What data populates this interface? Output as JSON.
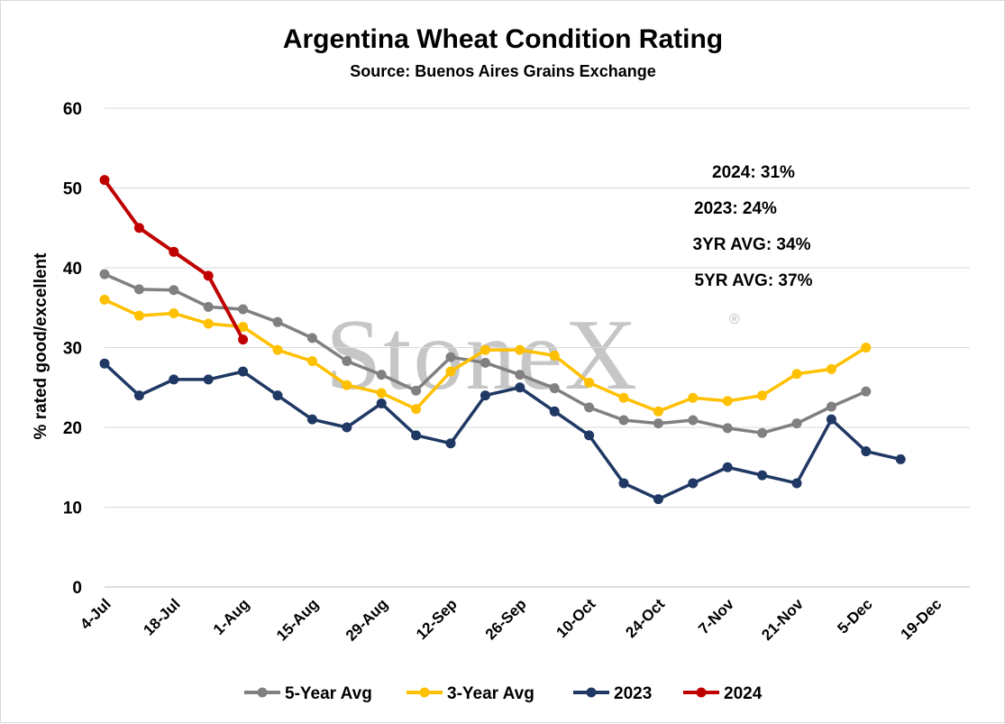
{
  "chart_data": {
    "type": "line",
    "title": "Argentina Wheat Condition Rating",
    "subtitle": "Source: Buenos Aires Grains Exchange",
    "ylabel": "% rated good/excellent",
    "xlabel": "",
    "ylim": [
      0,
      60
    ],
    "yticks": [
      0,
      10,
      20,
      30,
      40,
      50,
      60
    ],
    "grid": true,
    "legend_position": "bottom",
    "x_categories": [
      "4-Jul",
      "11-Jul",
      "18-Jul",
      "25-Jul",
      "1-Aug",
      "8-Aug",
      "15-Aug",
      "22-Aug",
      "29-Aug",
      "5-Sep",
      "12-Sep",
      "19-Sep",
      "26-Sep",
      "3-Oct",
      "10-Oct",
      "17-Oct",
      "24-Oct",
      "31-Oct",
      "7-Nov",
      "14-Nov",
      "21-Nov",
      "28-Nov",
      "5-Dec",
      "12-Dec",
      "19-Dec"
    ],
    "x_tick_labels": [
      "4-Jul",
      "18-Jul",
      "1-Aug",
      "15-Aug",
      "29-Aug",
      "12-Sep",
      "26-Sep",
      "10-Oct",
      "24-Oct",
      "7-Nov",
      "21-Nov",
      "5-Dec",
      "19-Dec"
    ],
    "series": [
      {
        "name": "5-Year Avg",
        "color": "#808080",
        "values": [
          39.2,
          37.3,
          37.2,
          35.1,
          34.8,
          33.2,
          31.2,
          28.3,
          26.6,
          24.6,
          28.8,
          28.1,
          26.6,
          24.9,
          22.5,
          20.9,
          20.5,
          20.9,
          19.9,
          19.3,
          20.5,
          22.6,
          24.5
        ]
      },
      {
        "name": "3-Year Avg",
        "color": "#ffc000",
        "values": [
          36.0,
          34.0,
          34.3,
          33.0,
          32.6,
          29.7,
          28.3,
          25.3,
          24.3,
          22.3,
          27.0,
          29.7,
          29.7,
          29.0,
          25.6,
          23.7,
          22.0,
          23.7,
          23.3,
          24.0,
          26.7,
          27.3,
          30.0
        ]
      },
      {
        "name": "2023",
        "color": "#1f3864",
        "values": [
          28,
          24,
          26,
          26,
          27,
          24,
          21,
          20,
          23,
          19,
          18,
          24,
          25,
          22,
          19,
          13,
          11,
          13,
          15,
          14,
          13,
          21,
          17,
          16
        ]
      },
      {
        "name": "2024",
        "color": "#c00000",
        "values": [
          51,
          45,
          42,
          39,
          31
        ]
      }
    ],
    "annotations": [
      "2024: 31%",
      "2023: 24%",
      "3YR AVG: 34%",
      "5YR AVG: 37%"
    ],
    "watermark": "StoneX",
    "watermark_mark": "®"
  }
}
